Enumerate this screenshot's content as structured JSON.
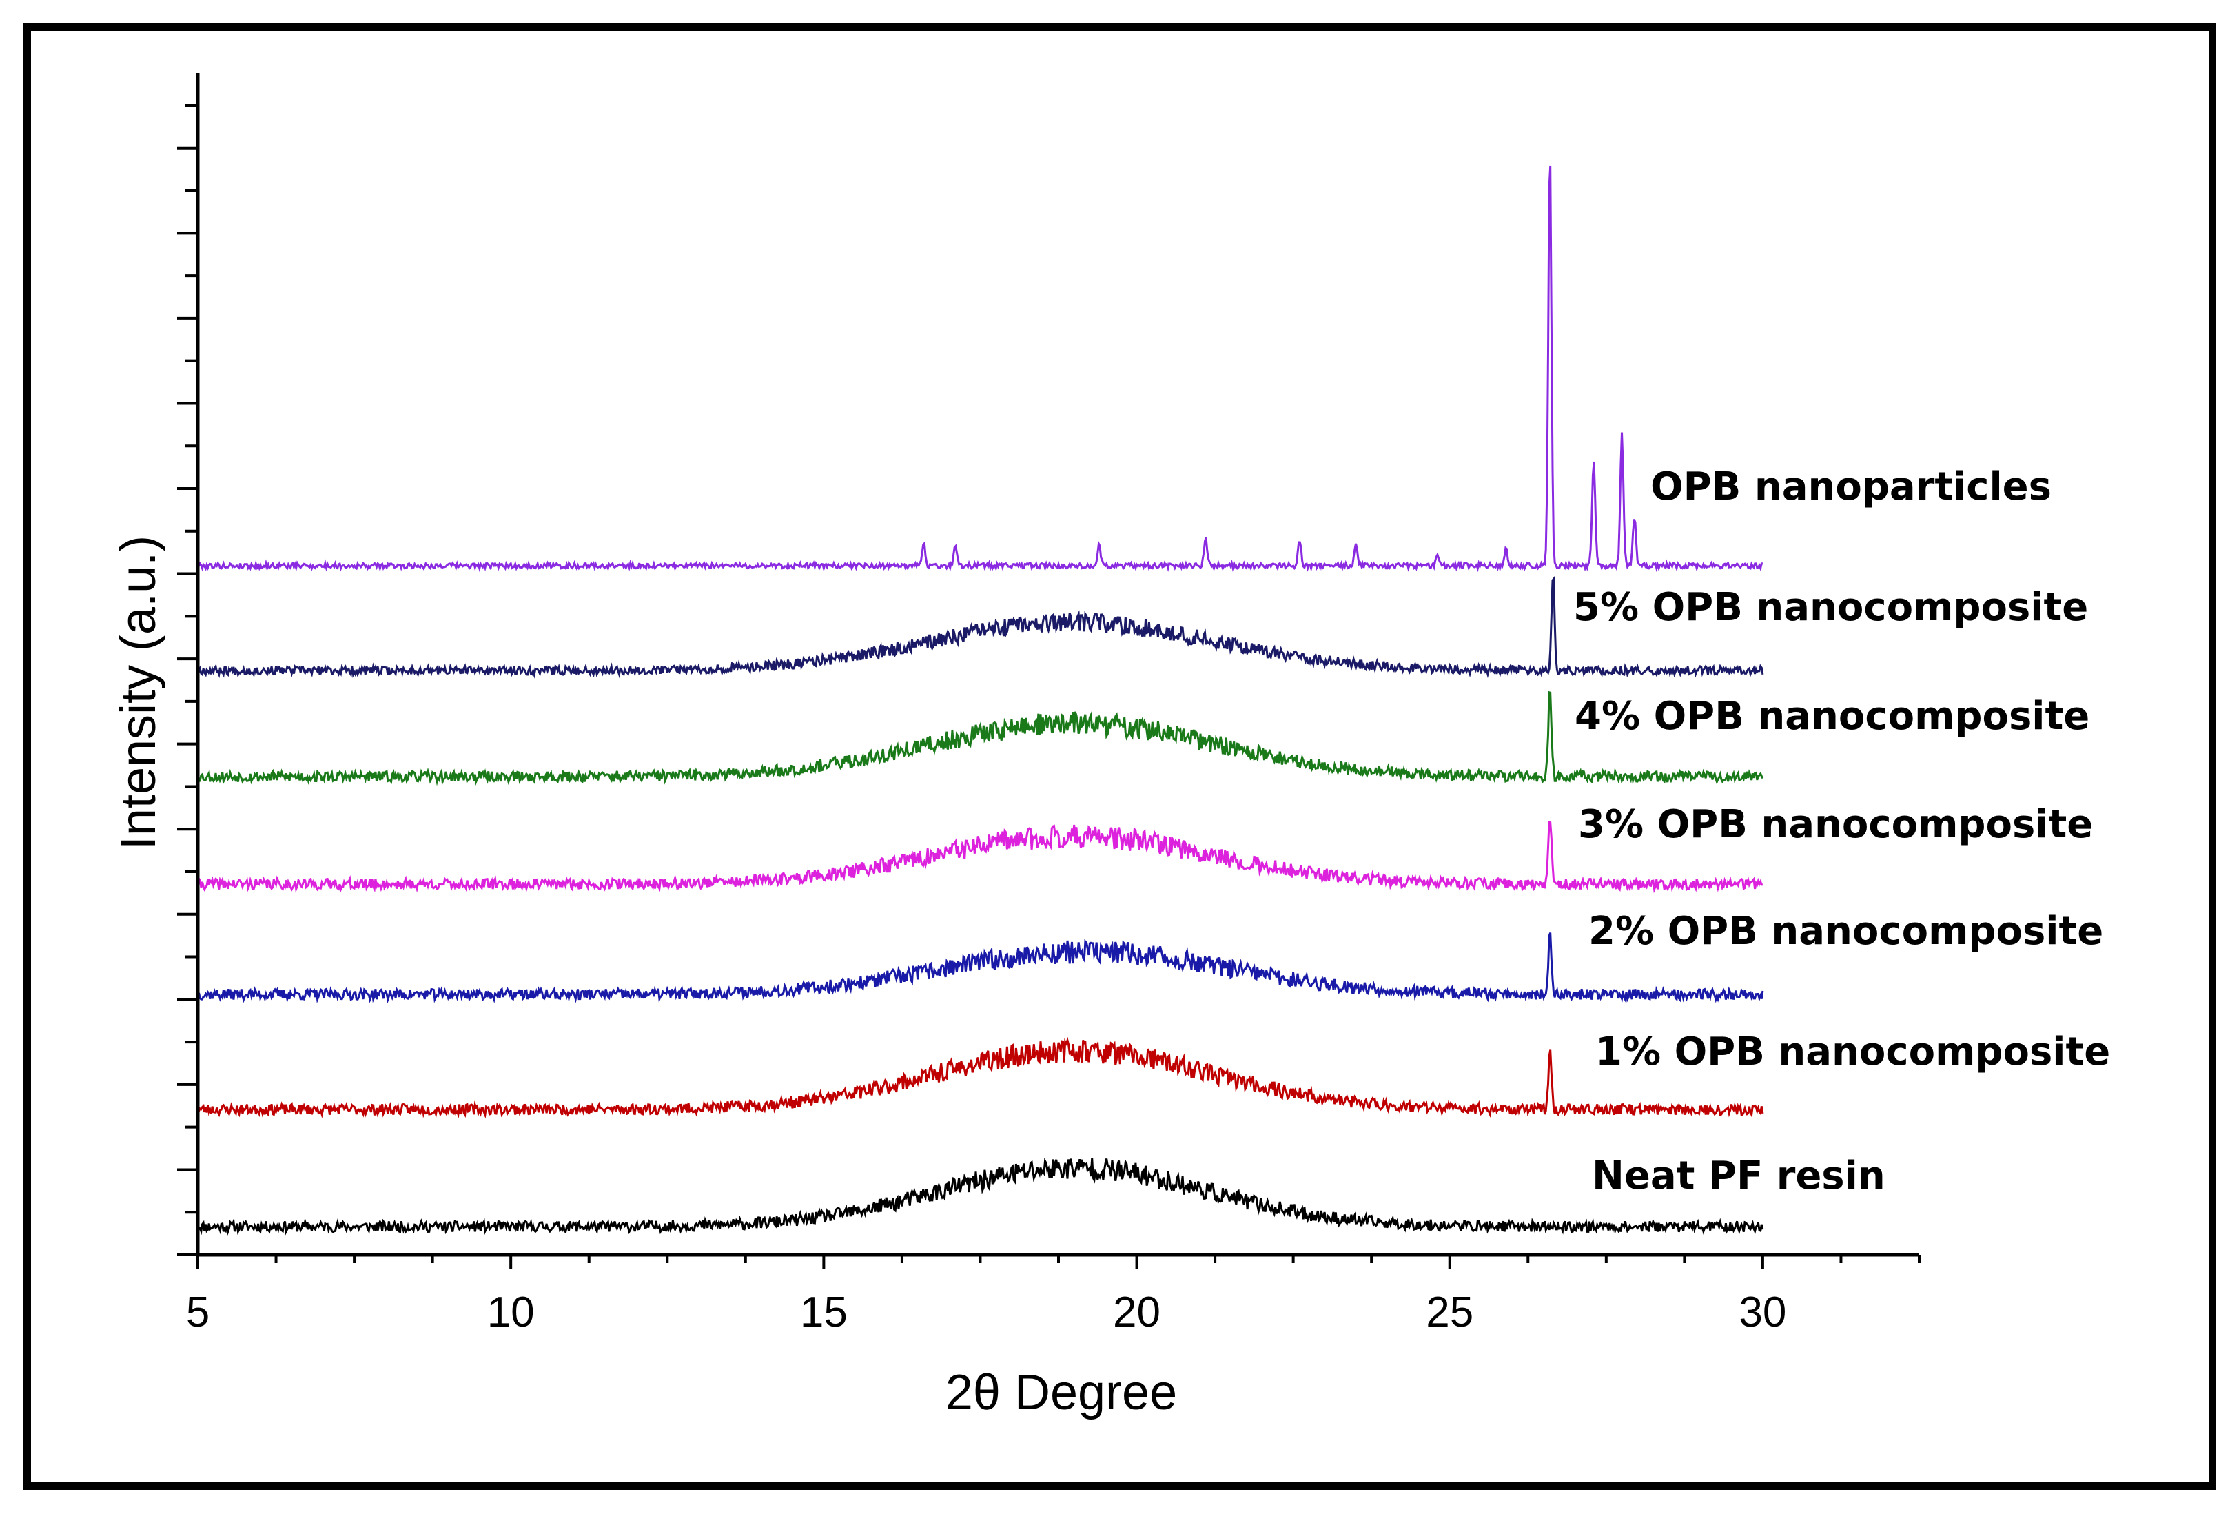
{
  "chart_data": {
    "type": "line",
    "title": "",
    "xlabel": "2θ  Degree",
    "ylabel": "Intensity (a.u.)",
    "xlim": [
      5,
      32.5
    ],
    "x_ticks": [
      5,
      10,
      15,
      20,
      25,
      30
    ],
    "x_tick_labels": [
      "5",
      "10",
      "15",
      "20",
      "25",
      "30"
    ],
    "x_range_data": [
      5,
      30
    ],
    "grid": false,
    "legend": "inline labels at right of each trace",
    "series": [
      {
        "name": "Neat PF resin",
        "color": "#000000",
        "offset": 0.0,
        "base": 0.0,
        "hump": {
          "center": 19.0,
          "width": 3.0,
          "height": 0.55
        },
        "peaks": [],
        "noise": 0.05,
        "seed": 11
      },
      {
        "name": "1% OPB nanocomposite",
        "color": "#c00000",
        "offset": 1.0,
        "base": 0.0,
        "hump": {
          "center": 19.0,
          "width": 3.1,
          "height": 0.55
        },
        "peaks": [
          {
            "x": 26.6,
            "h": 0.55
          }
        ],
        "noise": 0.05,
        "seed": 23
      },
      {
        "name": "2% OPB nanocomposite",
        "color": "#1a1aa8",
        "offset": 2.0,
        "base": 0.0,
        "hump": {
          "center": 19.2,
          "width": 3.2,
          "height": 0.4
        },
        "peaks": [
          {
            "x": 26.6,
            "h": 0.55
          }
        ],
        "noise": 0.05,
        "seed": 37
      },
      {
        "name": "3% OPB nanocomposite",
        "color": "#dd22dd",
        "offset": 3.0,
        "base": 0.0,
        "hump": {
          "center": 19.0,
          "width": 3.1,
          "height": 0.45
        },
        "peaks": [
          {
            "x": 26.6,
            "h": 0.65
          }
        ],
        "noise": 0.05,
        "seed": 41
      },
      {
        "name": "4% OPB nanocomposite",
        "color": "#1a7a1a",
        "offset": 4.0,
        "base": 0.0,
        "hump": {
          "center": 19.0,
          "width": 3.2,
          "height": 0.5
        },
        "peaks": [
          {
            "x": 26.6,
            "h": 0.85
          }
        ],
        "noise": 0.05,
        "seed": 53
      },
      {
        "name": "5% OPB nanocomposite",
        "color": "#1a1a66",
        "offset": 5.0,
        "base": 0.0,
        "hump": {
          "center": 19.0,
          "width": 3.2,
          "height": 0.45
        },
        "peaks": [
          {
            "x": 26.65,
            "h": 0.9
          }
        ],
        "noise": 0.04,
        "seed": 67
      },
      {
        "name": "OPB nanoparticles",
        "color": "#8a2be2",
        "offset": 5.85,
        "base": 0.0,
        "hump": {
          "center": 19.0,
          "width": 3.0,
          "height": 0.0
        },
        "peaks": [
          {
            "x": 16.6,
            "h": 0.2
          },
          {
            "x": 17.1,
            "h": 0.2
          },
          {
            "x": 19.4,
            "h": 0.2
          },
          {
            "x": 21.1,
            "h": 0.25
          },
          {
            "x": 22.6,
            "h": 0.25
          },
          {
            "x": 23.5,
            "h": 0.2
          },
          {
            "x": 24.8,
            "h": 0.12
          },
          {
            "x": 25.9,
            "h": 0.15
          },
          {
            "x": 26.6,
            "h": 3.9
          },
          {
            "x": 27.3,
            "h": 1.0
          },
          {
            "x": 27.75,
            "h": 1.25
          },
          {
            "x": 27.95,
            "h": 0.45
          }
        ],
        "noise": 0.025,
        "seed": 79
      }
    ]
  }
}
